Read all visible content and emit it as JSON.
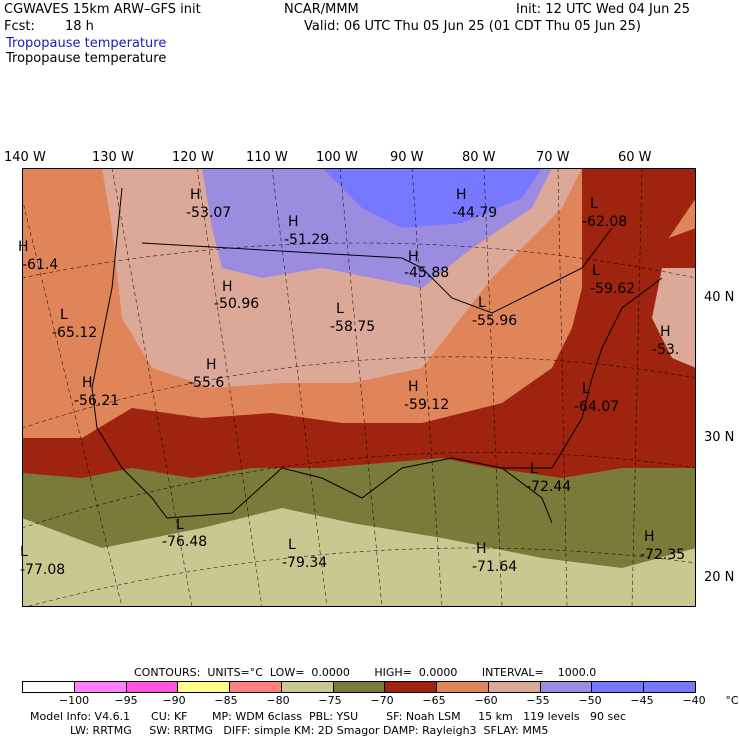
{
  "header": {
    "model_line": "CGWAVES 15km ARW–GFS init",
    "center": "NCAR/MMM",
    "init": "Init: 12 UTC Wed 04 Jun 25",
    "fcst_label": "Fcst:",
    "fcst_value": "18 h",
    "valid": "Valid: 06 UTC Thu 05 Jun 25 (01 CDT Thu 05 Jun 25)",
    "field_colored": "Tropopause temperature",
    "field_plain": "Tropopause temperature"
  },
  "map": {
    "lon_labels": [
      "140 W",
      "130 W",
      "120 W",
      "110 W",
      "100 W",
      "90 W",
      "80 W",
      "70 W",
      "60 W"
    ],
    "lat_labels": [
      "40 N",
      "30 N",
      "20 N"
    ],
    "extrema": [
      {
        "type": "H",
        "value": "-53.07"
      },
      {
        "type": "H",
        "value": "-51.29"
      },
      {
        "type": "H",
        "value": "-44.79"
      },
      {
        "type": "L",
        "value": "-62.08"
      },
      {
        "type": "H",
        "value": "-45.88"
      },
      {
        "type": "L",
        "value": "-59.62"
      },
      {
        "type": "H",
        "value": "-61.4"
      },
      {
        "type": "H",
        "value": "-50.96"
      },
      {
        "type": "L",
        "value": "-58.75"
      },
      {
        "type": "L",
        "value": "-65.12"
      },
      {
        "type": "L",
        "value": "-55.96"
      },
      {
        "type": "H",
        "value": "-53."
      },
      {
        "type": "H",
        "value": "-55.6"
      },
      {
        "type": "H",
        "value": "-56.21"
      },
      {
        "type": "H",
        "value": "-59.12"
      },
      {
        "type": "L",
        "value": "-64.07"
      },
      {
        "type": "L",
        "value": "-72.44"
      },
      {
        "type": "L",
        "value": "-76.48"
      },
      {
        "type": "L",
        "value": "-79.34"
      },
      {
        "type": "H",
        "value": "-71.64"
      },
      {
        "type": "H",
        "value": "-72.35"
      },
      {
        "type": "L",
        "value": "-77.08"
      }
    ]
  },
  "contours": {
    "line": "CONTOURS:  UNITS=°C  LOW=  0.0000       HIGH=  0.0000       INTERVAL=    1000.0"
  },
  "legend": {
    "colors": [
      "#ffffff",
      "#ff7fff",
      "#ff55dd",
      "#ffff88",
      "#ff8080",
      "#c8c890",
      "#7a7a3a",
      "#9e2410",
      "#e0855a",
      "#dca898",
      "#9c8ce0",
      "#7878ff",
      "#7878ff"
    ],
    "ticks": [
      "−100",
      "−95",
      "−90",
      "−85",
      "−80",
      "−75",
      "−70",
      "−65",
      "−60",
      "−55",
      "−50",
      "−45",
      "−40",
      "°C"
    ]
  },
  "footer": {
    "line1": "Model Info: V4.6.1      CU: KF       MP: WDM 6class  PBL: YSU        SF: Noah LSM     15 km   119 levels   90 sec",
    "line2": "LW: RRTMG     SW: RRTMG   DIFF: simple KM: 2D Smagor DAMP: Rayleigh3  SFLAY: MM5"
  }
}
